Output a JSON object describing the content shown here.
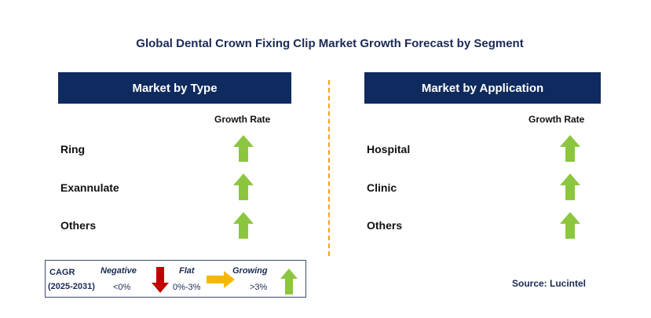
{
  "title": "Global Dental Crown Fixing Clip Market Growth Forecast by Segment",
  "colors": {
    "header_bg": "#0f2a5e",
    "growing": "#8cc63f",
    "negative": "#c00000",
    "flat": "#f5b800",
    "divider": "#f2a900"
  },
  "left_panel": {
    "header": "Market by Type",
    "growth_label": "Growth Rate",
    "rows": [
      {
        "label": "Ring",
        "trend": "growing"
      },
      {
        "label": "Exannulate",
        "trend": "growing"
      },
      {
        "label": "Others",
        "trend": "growing"
      }
    ]
  },
  "right_panel": {
    "header": "Market by Application",
    "growth_label": "Growth Rate",
    "rows": [
      {
        "label": "Hospital",
        "trend": "growing"
      },
      {
        "label": "Clinic",
        "trend": "growing"
      },
      {
        "label": "Others",
        "trend": "growing"
      }
    ]
  },
  "legend": {
    "cagr": "CAGR",
    "period": "(2025-2031)",
    "negative_label": "Negative",
    "negative_range": "<0%",
    "flat_label": "Flat",
    "flat_range": "0%-3%",
    "growing_label": "Growing",
    "growing_range": ">3%"
  },
  "source": "Source: Lucintel"
}
